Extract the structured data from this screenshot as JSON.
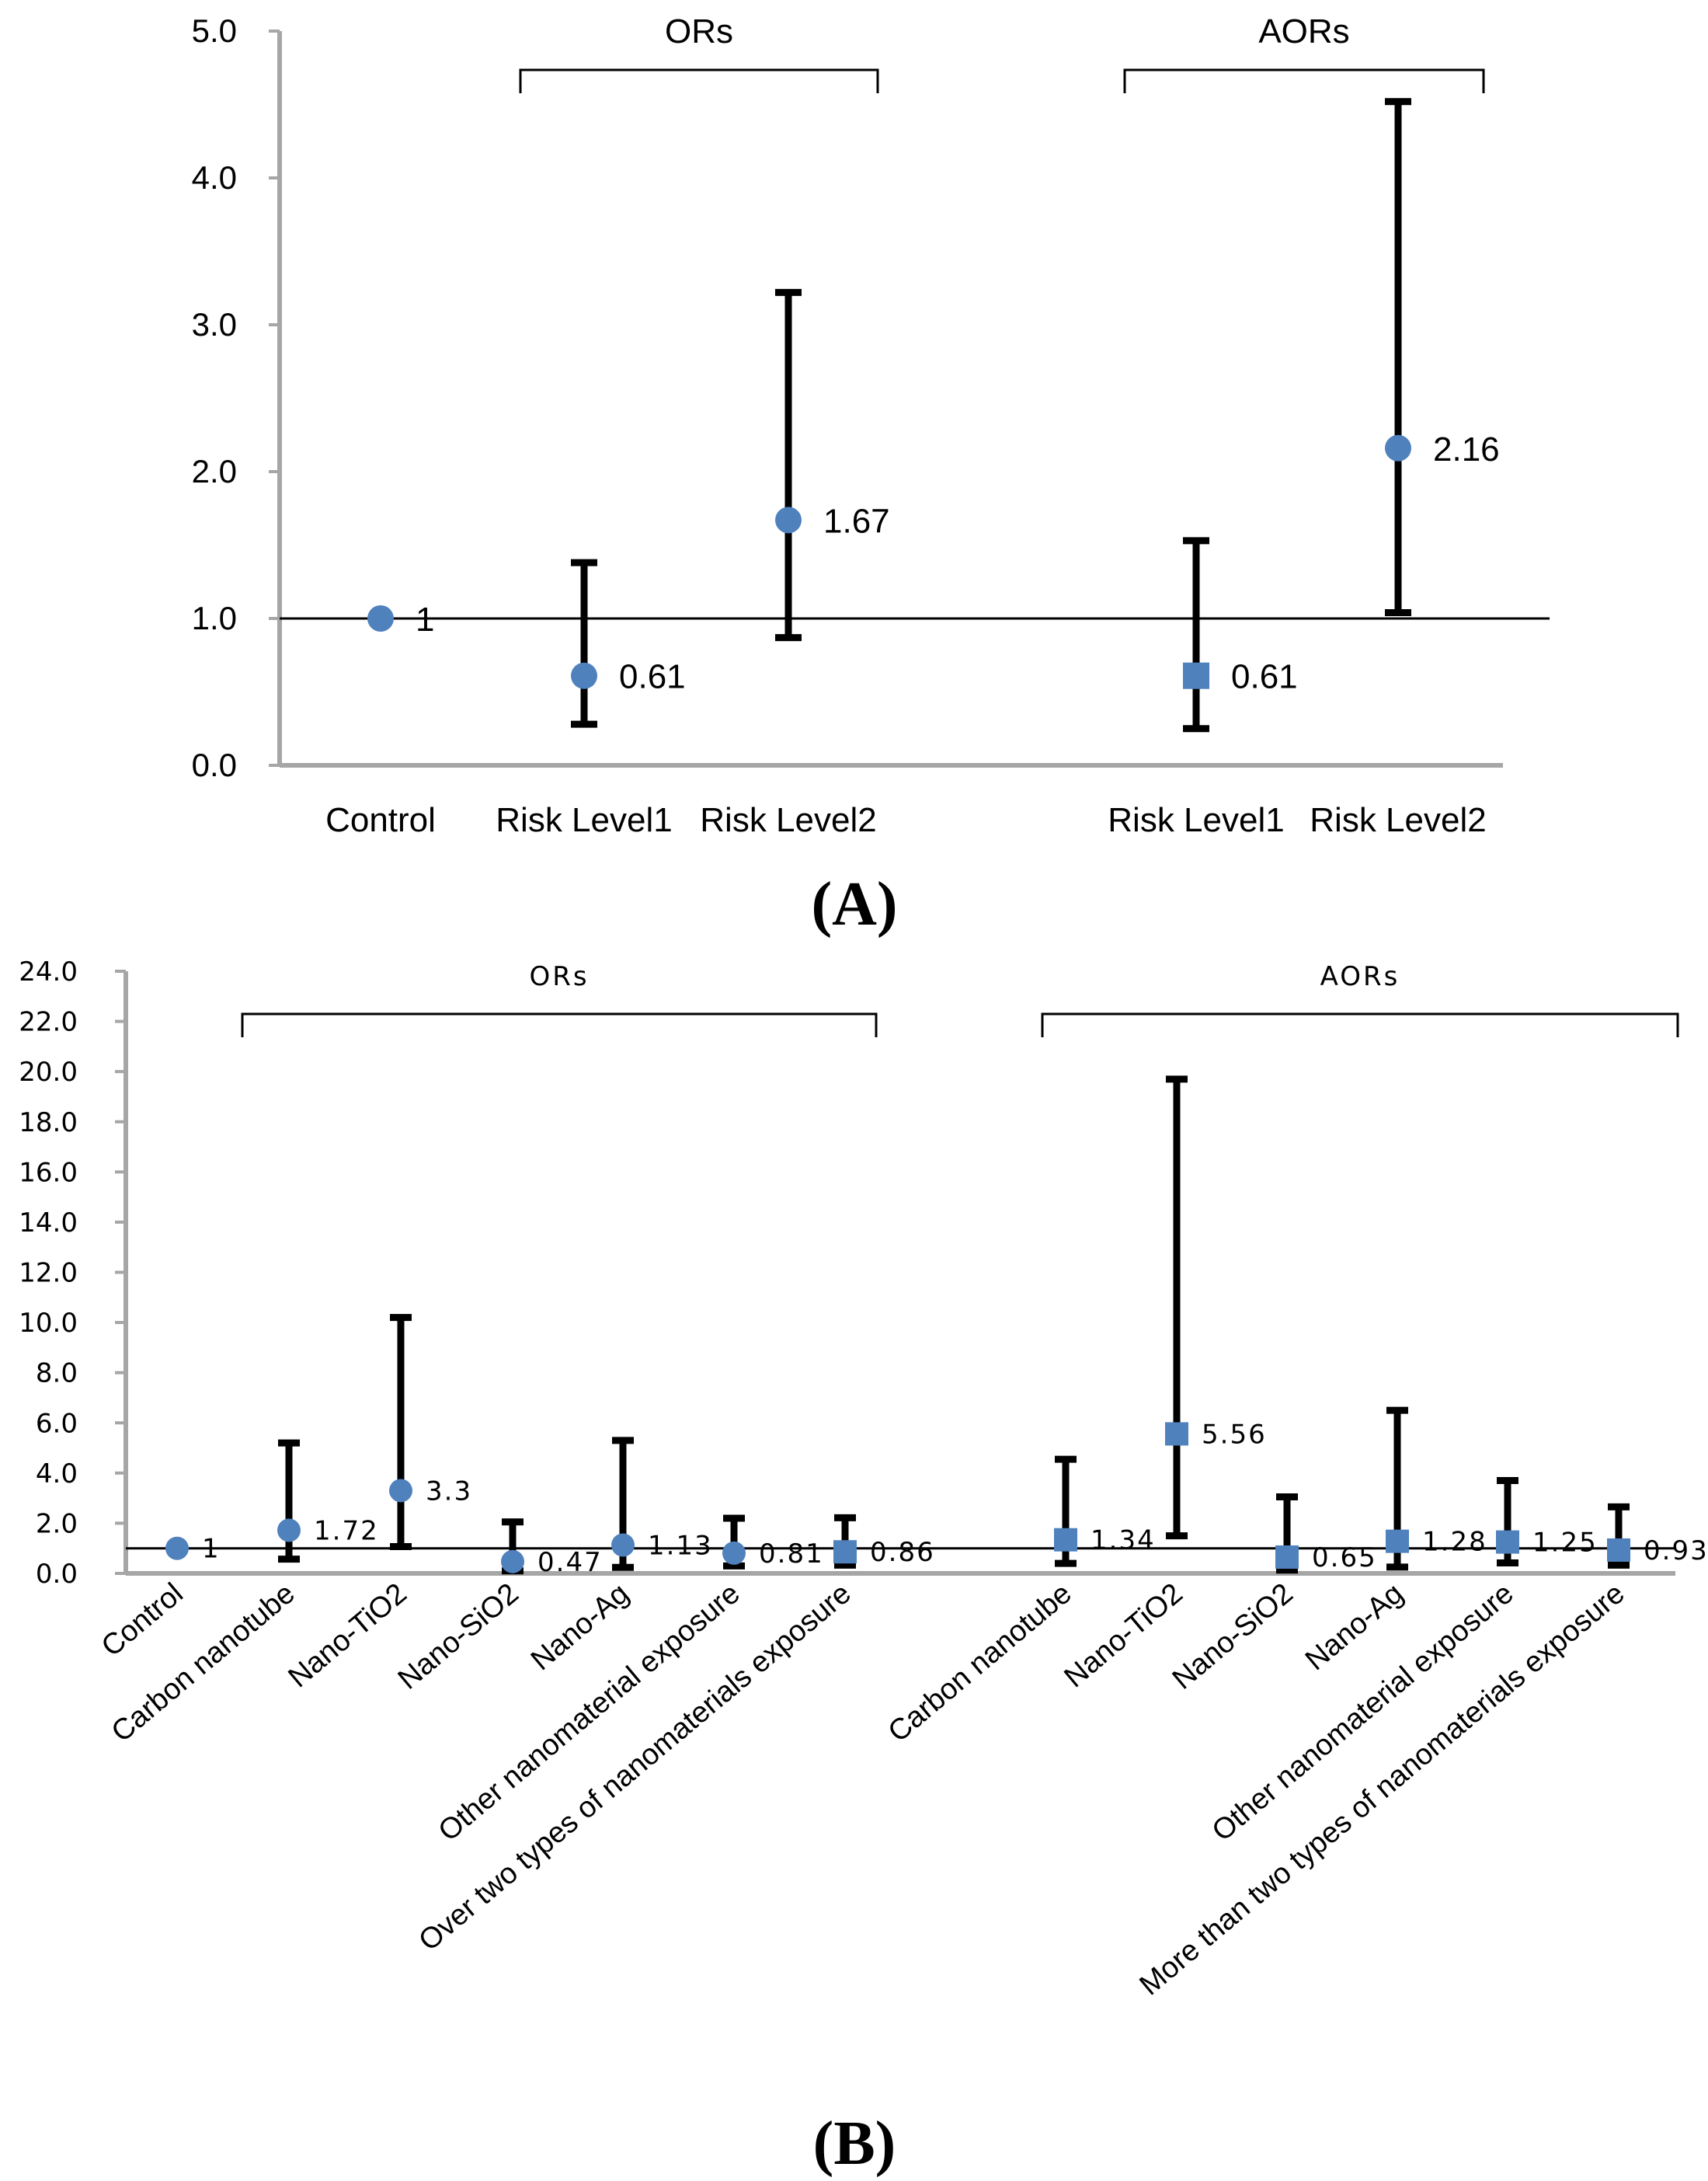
{
  "chart_data": [
    {
      "type": "scatter",
      "panel_label": "(A)",
      "ylim": [
        0,
        5
      ],
      "yticks": [
        "0.0",
        "1.0",
        "2.0",
        "3.0",
        "4.0",
        "5.0"
      ],
      "reference_line": 1,
      "marker_color": "#4f81bd",
      "error_bar_color": "#000000",
      "groups": [
        {
          "label": "ORs",
          "first": 1,
          "last": 2
        },
        {
          "label": "AORs",
          "first": 4,
          "last": 5
        }
      ],
      "categories": [
        "Control",
        "Risk Level1",
        "Risk Level2",
        "",
        "Risk Level1",
        "Risk Level2"
      ],
      "points": [
        {
          "index": 0,
          "value": 1,
          "lower": null,
          "upper": null,
          "marker": "circle",
          "label": "1"
        },
        {
          "index": 1,
          "value": 0.61,
          "lower": 0.28,
          "upper": 1.38,
          "marker": "circle",
          "label": "0.61"
        },
        {
          "index": 2,
          "value": 1.67,
          "lower": 0.87,
          "upper": 3.22,
          "marker": "circle",
          "label": "1.67"
        },
        {
          "index": 4,
          "value": 0.61,
          "lower": 0.25,
          "upper": 1.53,
          "marker": "square",
          "label": "0.61"
        },
        {
          "index": 5,
          "value": 2.16,
          "lower": 1.04,
          "upper": 4.52,
          "marker": "circle",
          "label": "2.16"
        }
      ]
    },
    {
      "type": "scatter",
      "panel_label": "(B)",
      "ylim": [
        0,
        24
      ],
      "yticks": [
        "0.0",
        "2.0",
        "4.0",
        "6.0",
        "8.0",
        "10.0",
        "12.0",
        "14.0",
        "16.0",
        "18.0",
        "20.0",
        "22.0",
        "24.0"
      ],
      "reference_line": 1,
      "marker_color": "#4f81bd",
      "error_bar_color": "#000000",
      "groups": [
        {
          "label": "ORs",
          "first": 1,
          "last": 6
        },
        {
          "label": "AORs",
          "first": 8,
          "last": 13
        }
      ],
      "categories": [
        "Control",
        "Carbon nanotube",
        "Nano-TiO2",
        "Nano-SiO2",
        "Nano-Ag",
        "Other nanomaterial exposure",
        "Over two types of nanomaterials exposure",
        "",
        "Carbon nanotube",
        "Nano-TiO2",
        "Nano-SiO2",
        "Nano-Ag",
        "Other nanomaterial exposure",
        "More than two types of nanomaterials exposure"
      ],
      "points": [
        {
          "index": 0,
          "value": 1,
          "lower": null,
          "upper": null,
          "marker": "circle",
          "label": "1"
        },
        {
          "index": 1,
          "value": 1.72,
          "lower": 0.57,
          "upper": 5.2,
          "marker": "circle",
          "label": "1.72"
        },
        {
          "index": 2,
          "value": 3.3,
          "lower": 1.07,
          "upper": 10.2,
          "marker": "circle",
          "label": "3.3"
        },
        {
          "index": 3,
          "value": 0.47,
          "lower": 0.1,
          "upper": 2.05,
          "marker": "circle",
          "label": "0.47"
        },
        {
          "index": 4,
          "value": 1.13,
          "lower": 0.24,
          "upper": 5.3,
          "marker": "circle",
          "label": "1.13"
        },
        {
          "index": 5,
          "value": 0.81,
          "lower": 0.3,
          "upper": 2.2,
          "marker": "circle",
          "label": "0.81"
        },
        {
          "index": 6,
          "value": 0.86,
          "lower": 0.33,
          "upper": 2.22,
          "marker": "square",
          "label": "0.86"
        },
        {
          "index": 8,
          "value": 1.34,
          "lower": 0.4,
          "upper": 4.55,
          "marker": "square",
          "label": "1.34"
        },
        {
          "index": 9,
          "value": 5.56,
          "lower": 1.5,
          "upper": 19.7,
          "marker": "square",
          "label": "5.56"
        },
        {
          "index": 10,
          "value": 0.65,
          "lower": 0.13,
          "upper": 3.05,
          "marker": "square",
          "label": "0.65"
        },
        {
          "index": 11,
          "value": 1.28,
          "lower": 0.25,
          "upper": 6.5,
          "marker": "square",
          "label": "1.28"
        },
        {
          "index": 12,
          "value": 1.25,
          "lower": 0.42,
          "upper": 3.7,
          "marker": "square",
          "label": "1.25"
        },
        {
          "index": 13,
          "value": 0.93,
          "lower": 0.33,
          "upper": 2.65,
          "marker": "square",
          "label": "0.93"
        }
      ]
    }
  ]
}
